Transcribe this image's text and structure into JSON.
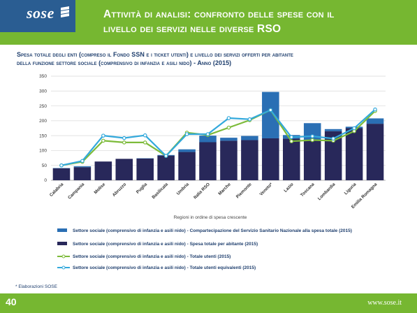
{
  "header": {
    "logo_text": "sose",
    "title_line1": "Attività di analisi: confronto delle spese con il",
    "title_line2": "livello dei servizi nelle diverse RSO"
  },
  "subtitle": {
    "line1": "Spesa totale degli enti (compreso il Fondo SSN e i ticket utenti) e livello dei servizi offerti per abitante",
    "line2": "della funzione settore sociale (comprensivo di infanzia e asili nido) - Anno (2015)"
  },
  "footnote": "* Elaborazioni SOSE",
  "footer": {
    "page_number": "40",
    "site": "www.sose.it"
  },
  "colors": {
    "green": "#76b731",
    "dark_blue_bar": "#28285a",
    "light_blue_bar": "#2a6fb4",
    "green_line": "#7dbb3a",
    "cyan_line": "#33a9dc"
  },
  "chart_data": {
    "type": "bar",
    "stacked": true,
    "title": "",
    "xlabel": "Regioni in ordine di spesa crescente",
    "ylabel": "",
    "ylim": [
      0,
      350
    ],
    "yticks": [
      0,
      50,
      100,
      150,
      200,
      250,
      300,
      350
    ],
    "grid": true,
    "legend_position": "bottom",
    "categories": [
      "Calabria",
      "Campania",
      "Molise",
      "Abruzzo",
      "Puglia",
      "Basilicata",
      "Umbria",
      "Italia RSO",
      "Marche",
      "Piemonte",
      "Veneto*",
      "Lazio",
      "Toscana",
      "Lombardia",
      "Liguria",
      "Emilia Romagna"
    ],
    "series": [
      {
        "name": "Settore sociale (comprensivo di infanzia e asili nido) - Spesa totale per abitante (2015)",
        "kind": "bar",
        "color": "#28285a",
        "values": [
          40,
          44,
          63,
          72,
          73,
          83,
          95,
          128,
          133,
          135,
          141,
          140,
          135,
          165,
          175,
          190
        ]
      },
      {
        "name": "Settore sociale (comprensivo di infanzia e asili nido) - Compartecipazione del Servizio Sanitario Nazionale alla spesa totale (2015)",
        "kind": "bar",
        "color": "#2a6fb4",
        "values": [
          1,
          3,
          0,
          0,
          1,
          2,
          9,
          22,
          10,
          14,
          156,
          12,
          57,
          7,
          5,
          18
        ]
      },
      {
        "name": "Settore sociale (comprensivo di infanzia e asili nido) - Totale utenti (2015)",
        "kind": "line",
        "color": "#7dbb3a",
        "values": [
          50,
          62,
          133,
          127,
          127,
          82,
          160,
          152,
          177,
          202,
          236,
          131,
          135,
          133,
          165,
          233
        ]
      },
      {
        "name": "Settore sociale (comprensivo di infanzia e asili nido) - Totale utenti equivalenti (2015)",
        "kind": "line",
        "color": "#33a9dc",
        "values": [
          50,
          65,
          150,
          142,
          151,
          82,
          155,
          155,
          209,
          205,
          236,
          145,
          148,
          140,
          175,
          238
        ]
      }
    ]
  }
}
